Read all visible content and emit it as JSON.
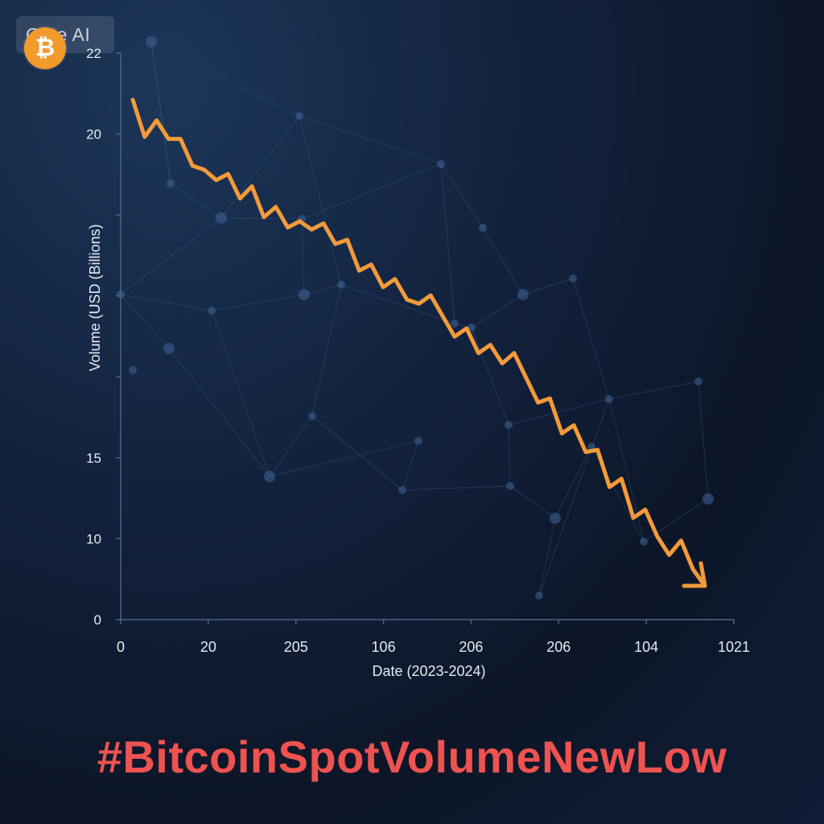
{
  "watermark": {
    "text": "Gate AI",
    "coin_symbol": "₿"
  },
  "hashtag": "#BitcoinSpotVolumeNewLow",
  "colors": {
    "line": "#f39a3a",
    "hashtag": "#ee5350",
    "axis": "#4c6286",
    "coin": "#f39a2d"
  },
  "chart_data": {
    "type": "line",
    "title": "",
    "xlabel": "Date (2023-2024)",
    "ylabel": "Volume (USD (Billions)",
    "x_ticks": [
      "0",
      "20",
      "205",
      "106",
      "206",
      "206",
      "104",
      "1021"
    ],
    "y_ticks": [
      "0",
      "10",
      "15",
      "",
      "",
      "",
      "20",
      "22"
    ],
    "grid": false,
    "legend": "none",
    "series": [
      {
        "values": [
          20.8,
          19.9,
          20.3,
          19.85,
          19.85,
          19.2,
          19.1,
          18.85,
          19.0,
          18.4,
          18.7,
          17.95,
          18.2,
          17.7,
          17.85,
          17.65,
          17.8,
          17.3,
          17.4,
          16.65,
          16.8,
          16.25,
          16.45,
          15.95,
          15.85,
          16.05,
          15.55,
          15.05,
          15.25,
          14.65,
          14.85,
          14.4,
          14.65,
          14.05,
          13.45,
          13.55,
          12.7,
          12.9,
          12.25,
          12.3,
          11.4,
          11.6,
          10.65,
          10.85,
          10.2,
          9.75,
          10.1,
          9.4,
          9.0
        ]
      }
    ]
  }
}
